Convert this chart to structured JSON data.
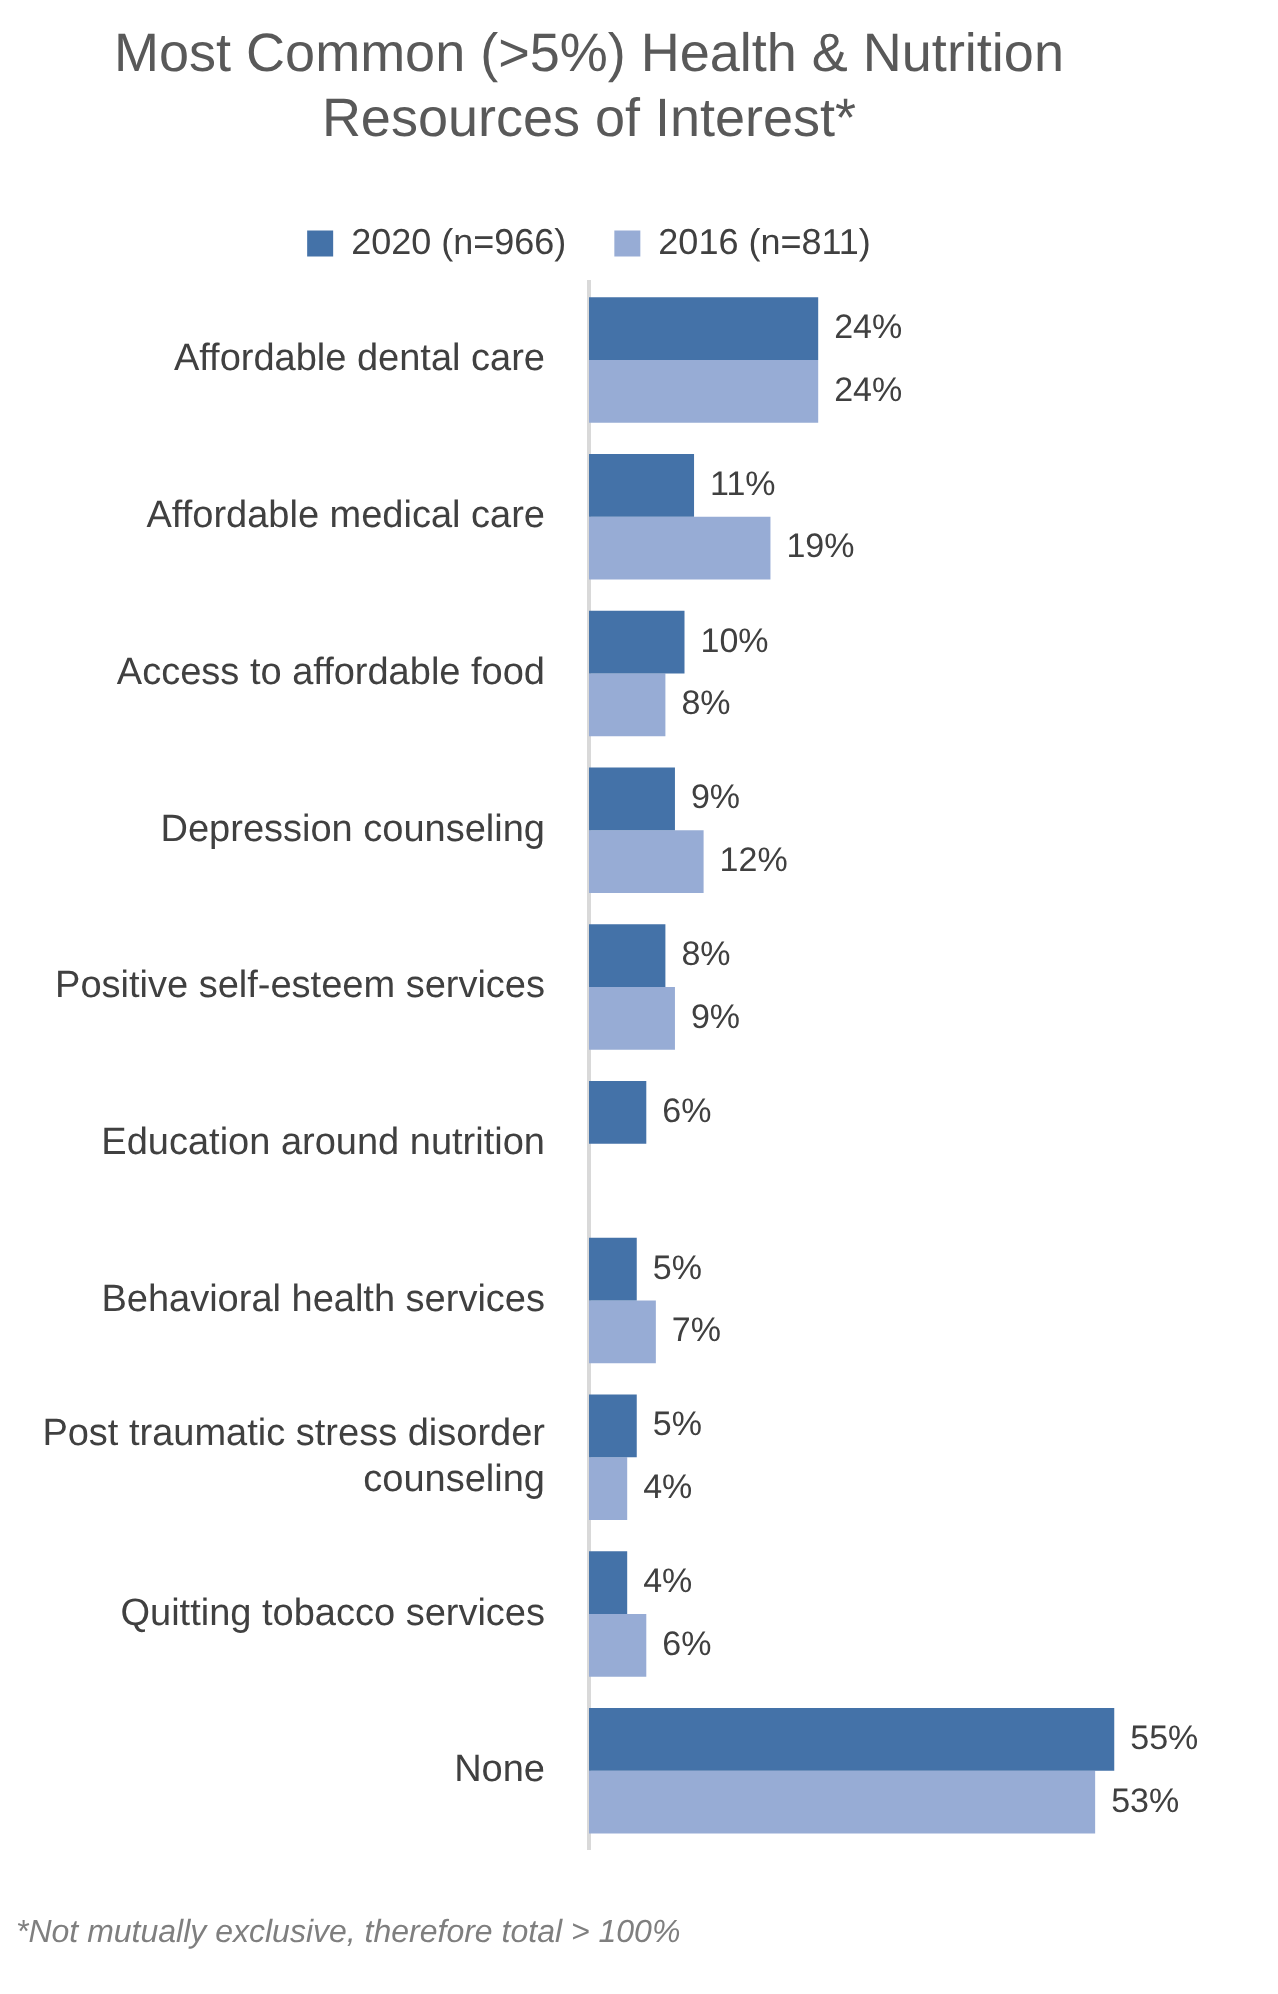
{
  "chart_data": {
    "type": "bar",
    "orientation": "horizontal",
    "title": "Most Common (>5%) Health & Nutrition Resources of Interest*",
    "categories": [
      "Affordable dental care",
      "Affordable medical care",
      "Access to affordable food",
      "Depression counseling",
      "Positive self-esteem services",
      "Education around nutrition",
      "Behavioral health services",
      "Post traumatic stress disorder counseling",
      "Quitting tobacco services",
      "None"
    ],
    "series": [
      {
        "name": "2020 (n=966)",
        "color": "#4472a8",
        "values": [
          24,
          11,
          10,
          9,
          8,
          6,
          5,
          5,
          4,
          55
        ],
        "value_labels": [
          "24%",
          "11%",
          "10%",
          "9%",
          "8%",
          "6%",
          "5%",
          "5%",
          "4%",
          "55%"
        ]
      },
      {
        "name": "2016 (n=811)",
        "color": "#97acd5",
        "values": [
          24,
          19,
          8,
          12,
          9,
          null,
          7,
          4,
          6,
          53
        ],
        "value_labels": [
          "24%",
          "19%",
          "8%",
          "12%",
          "9%",
          null,
          "7%",
          "4%",
          "6%",
          "53%"
        ]
      }
    ],
    "legend": "top",
    "grid": false,
    "tick_labels": "y",
    "annotations": [
      "*Not mutually exclusive, therefore total > 100%"
    ]
  }
}
